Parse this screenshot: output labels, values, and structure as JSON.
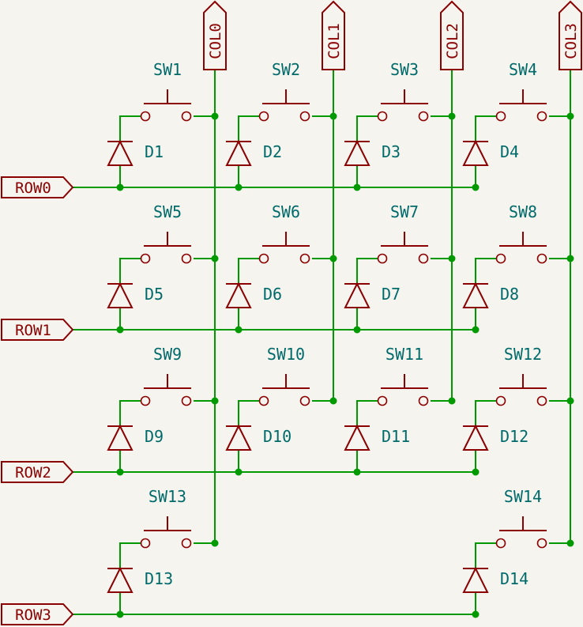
{
  "ports": {
    "rows": [
      "ROW0",
      "ROW1",
      "ROW2",
      "ROW3"
    ],
    "cols": [
      "COL0",
      "COL1",
      "COL2",
      "COL3"
    ]
  },
  "cells": [
    {
      "sw": "SW1",
      "d": "D1",
      "row": 0,
      "col": 0
    },
    {
      "sw": "SW2",
      "d": "D2",
      "row": 0,
      "col": 1
    },
    {
      "sw": "SW3",
      "d": "D3",
      "row": 0,
      "col": 2
    },
    {
      "sw": "SW4",
      "d": "D4",
      "row": 0,
      "col": 3
    },
    {
      "sw": "SW5",
      "d": "D5",
      "row": 1,
      "col": 0
    },
    {
      "sw": "SW6",
      "d": "D6",
      "row": 1,
      "col": 1
    },
    {
      "sw": "SW7",
      "d": "D7",
      "row": 1,
      "col": 2
    },
    {
      "sw": "SW8",
      "d": "D8",
      "row": 1,
      "col": 3
    },
    {
      "sw": "SW9",
      "d": "D9",
      "row": 2,
      "col": 0
    },
    {
      "sw": "SW10",
      "d": "D10",
      "row": 2,
      "col": 1
    },
    {
      "sw": "SW11",
      "d": "D11",
      "row": 2,
      "col": 2
    },
    {
      "sw": "SW12",
      "d": "D12",
      "row": 2,
      "col": 3
    },
    {
      "sw": "SW13",
      "d": "D13",
      "row": 3,
      "col": 0
    },
    {
      "sw": "SW14",
      "d": "D14",
      "row": 3,
      "col": 3
    }
  ]
}
